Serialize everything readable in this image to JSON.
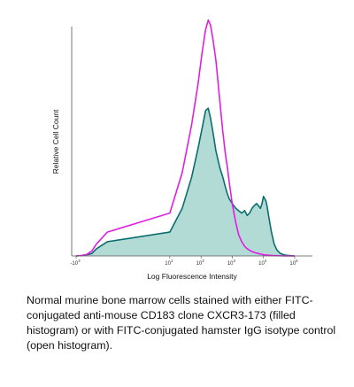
{
  "chart_data": {
    "type": "area",
    "xlabel": "Log Fluorescence Intensity",
    "ylabel": "Relative Cell Count",
    "x_scale": "biexponential",
    "x_ticks": [
      {
        "value": -1000,
        "base": "-10",
        "exp": "3"
      },
      {
        "value": 10,
        "base": "10",
        "exp": "1"
      },
      {
        "value": 100,
        "base": "10",
        "exp": "2"
      },
      {
        "value": 1000,
        "base": "10",
        "exp": "3"
      },
      {
        "value": 10000,
        "base": "10",
        "exp": "4"
      },
      {
        "value": 100000,
        "base": "10",
        "exp": "5"
      }
    ],
    "ylim": [
      0,
      100
    ],
    "grid": false,
    "series": [
      {
        "style": "filled",
        "color": "#0a6e6e",
        "fill": "#b3dbd6",
        "points": [
          [
            -1000,
            0
          ],
          [
            -300,
            0.2
          ],
          [
            -100,
            0.5
          ],
          [
            -30,
            1
          ],
          [
            -10,
            3
          ],
          [
            0,
            6
          ],
          [
            10,
            10
          ],
          [
            25,
            20
          ],
          [
            50,
            33
          ],
          [
            80,
            45
          ],
          [
            110,
            54
          ],
          [
            140,
            61
          ],
          [
            170,
            62
          ],
          [
            200,
            58
          ],
          [
            240,
            52
          ],
          [
            300,
            44
          ],
          [
            400,
            37
          ],
          [
            500,
            33
          ],
          [
            600,
            29
          ],
          [
            700,
            26
          ],
          [
            800,
            24
          ],
          [
            1000,
            22
          ],
          [
            1300,
            20
          ],
          [
            1600,
            19
          ],
          [
            2000,
            18
          ],
          [
            2500,
            19
          ],
          [
            3000,
            17
          ],
          [
            3600,
            18
          ],
          [
            4300,
            20
          ],
          [
            5000,
            21
          ],
          [
            6000,
            22
          ],
          [
            7000,
            21
          ],
          [
            8000,
            20
          ],
          [
            9000,
            22
          ],
          [
            10000,
            25
          ],
          [
            11000,
            24
          ],
          [
            12000,
            23
          ],
          [
            13000,
            21
          ],
          [
            15000,
            16
          ],
          [
            18000,
            10
          ],
          [
            22000,
            5
          ],
          [
            27000,
            2.5
          ],
          [
            35000,
            1
          ],
          [
            50000,
            0.3
          ],
          [
            100000,
            0
          ]
        ]
      },
      {
        "style": "open",
        "color": "#e020e0",
        "points": [
          [
            -1000,
            0
          ],
          [
            -300,
            0.2
          ],
          [
            -100,
            0.6
          ],
          [
            -30,
            2
          ],
          [
            -10,
            5
          ],
          [
            0,
            10
          ],
          [
            10,
            18
          ],
          [
            25,
            35
          ],
          [
            50,
            55
          ],
          [
            80,
            72
          ],
          [
            110,
            86
          ],
          [
            140,
            95
          ],
          [
            170,
            99
          ],
          [
            200,
            97
          ],
          [
            240,
            91
          ],
          [
            300,
            82
          ],
          [
            400,
            65
          ],
          [
            500,
            52
          ],
          [
            600,
            43
          ],
          [
            700,
            37
          ],
          [
            800,
            31
          ],
          [
            1000,
            22
          ],
          [
            1300,
            14
          ],
          [
            1600,
            9
          ],
          [
            2000,
            6
          ],
          [
            2500,
            4
          ],
          [
            3000,
            3
          ],
          [
            4000,
            2
          ],
          [
            5000,
            1.5
          ],
          [
            7000,
            1
          ],
          [
            10000,
            0.5
          ],
          [
            20000,
            0.2
          ],
          [
            50000,
            0
          ],
          [
            100000,
            0
          ]
        ]
      }
    ]
  },
  "caption": "Normal murine bone marrow cells stained with either FITC-conjugated anti-mouse CD183 clone CXCR3-173 (filled histogram) or with FITC-conjugated hamster IgG isotype control (open histogram)."
}
